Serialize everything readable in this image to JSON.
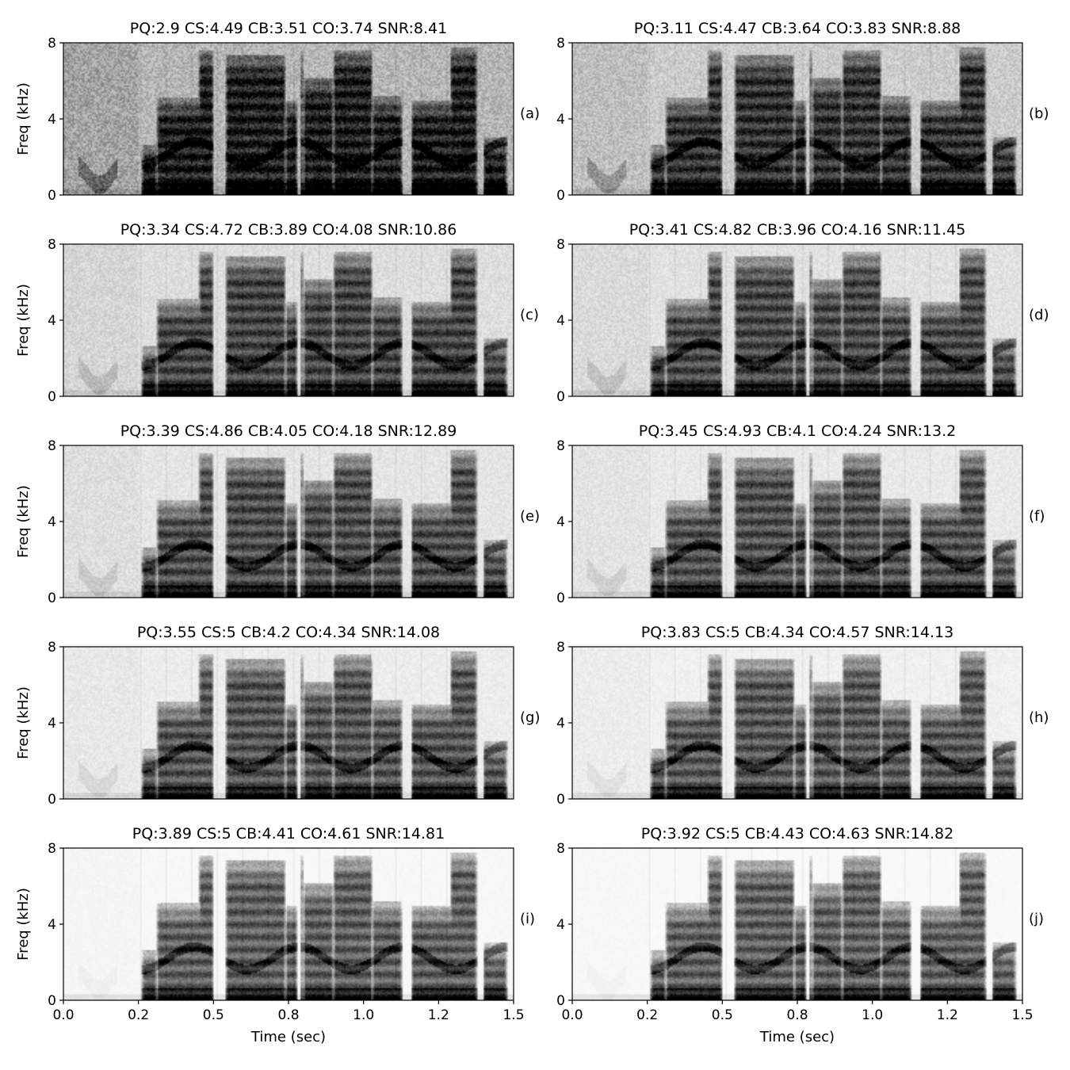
{
  "figure": {
    "xlabel": "Time (sec)",
    "ylabel": "Freq (kHz)"
  },
  "chart_data": [
    {
      "type": "heatmap",
      "panel": "(a)",
      "title": "PQ:2.9  CS:4.49  CB:3.51  CO:3.74  SNR:8.41",
      "xlabel": "",
      "ylabel": "Freq (kHz)",
      "xlim": [
        0,
        1.5
      ],
      "ylim": [
        0,
        8
      ],
      "xticks": [],
      "yticks": [
        "0",
        "4",
        "8"
      ],
      "noise_level": 1.0,
      "colormap": "grayscale (white=low, black=high)"
    },
    {
      "type": "heatmap",
      "panel": "(b)",
      "title": "PQ:3.11  CS:4.47  CB:3.64  CO:3.83  SNR:8.88",
      "xlabel": "",
      "ylabel": "",
      "xlim": [
        0,
        1.5
      ],
      "ylim": [
        0,
        8
      ],
      "xticks": [],
      "yticks": [
        "0",
        "4",
        "8"
      ],
      "noise_level": 0.7,
      "colormap": "grayscale (white=low, black=high)"
    },
    {
      "type": "heatmap",
      "panel": "(c)",
      "title": "PQ:3.34  CS:4.72  CB:3.89  CO:4.08  SNR:10.86",
      "xlabel": "",
      "ylabel": "Freq (kHz)",
      "xlim": [
        0,
        1.5
      ],
      "ylim": [
        0,
        8
      ],
      "xticks": [],
      "yticks": [
        "0",
        "4",
        "8"
      ],
      "noise_level": 0.45,
      "colormap": "grayscale (white=low, black=high)"
    },
    {
      "type": "heatmap",
      "panel": "(d)",
      "title": "PQ:3.41  CS:4.82  CB:3.96  CO:4.16  SNR:11.45",
      "xlabel": "",
      "ylabel": "",
      "xlim": [
        0,
        1.5
      ],
      "ylim": [
        0,
        8
      ],
      "xticks": [],
      "yticks": [
        "0",
        "4",
        "8"
      ],
      "noise_level": 0.4,
      "colormap": "grayscale (white=low, black=high)"
    },
    {
      "type": "heatmap",
      "panel": "(e)",
      "title": "PQ:3.39  CS:4.86  CB:4.05  CO:4.18  SNR:12.89",
      "xlabel": "",
      "ylabel": "Freq (kHz)",
      "xlim": [
        0,
        1.5
      ],
      "ylim": [
        0,
        8
      ],
      "xticks": [],
      "yticks": [
        "0",
        "4",
        "8"
      ],
      "noise_level": 0.35,
      "colormap": "grayscale (white=low, black=high)"
    },
    {
      "type": "heatmap",
      "panel": "(f)",
      "title": "PQ:3.45  CS:4.93  CB:4.1  CO:4.24  SNR:13.2",
      "xlabel": "",
      "ylabel": "",
      "xlim": [
        0,
        1.5
      ],
      "ylim": [
        0,
        8
      ],
      "xticks": [],
      "yticks": [
        "0",
        "4",
        "8"
      ],
      "noise_level": 0.3,
      "colormap": "grayscale (white=low, black=high)"
    },
    {
      "type": "heatmap",
      "panel": "(g)",
      "title": "PQ:3.55  CS:5  CB:4.2  CO:4.34  SNR:14.08",
      "xlabel": "",
      "ylabel": "Freq (kHz)",
      "xlim": [
        0,
        1.5
      ],
      "ylim": [
        0,
        8
      ],
      "xticks": [],
      "yticks": [
        "0",
        "4",
        "8"
      ],
      "noise_level": 0.25,
      "colormap": "grayscale (white=low, black=high)"
    },
    {
      "type": "heatmap",
      "panel": "(h)",
      "title": "PQ:3.83  CS:5  CB:4.34  CO:4.57  SNR:14.13",
      "xlabel": "",
      "ylabel": "",
      "xlim": [
        0,
        1.5
      ],
      "ylim": [
        0,
        8
      ],
      "xticks": [],
      "yticks": [
        "0",
        "4",
        "8"
      ],
      "noise_level": 0.2,
      "colormap": "grayscale (white=low, black=high)"
    },
    {
      "type": "heatmap",
      "panel": "(i)",
      "title": "PQ:3.89  CS:5  CB:4.41  CO:4.61  SNR:14.81",
      "xlabel": "Time (sec)",
      "ylabel": "Freq (kHz)",
      "xlim": [
        0,
        1.5
      ],
      "ylim": [
        0,
        8
      ],
      "xticks": [
        "0.0",
        "0.2",
        "0.5",
        "0.8",
        "1.0",
        "1.2",
        "1.5"
      ],
      "yticks": [
        "0",
        "4",
        "8"
      ],
      "noise_level": 0.1,
      "colormap": "grayscale (white=low, black=high)"
    },
    {
      "type": "heatmap",
      "panel": "(j)",
      "title": "PQ:3.92  CS:5  CB:4.43  CO:4.63  SNR:14.82",
      "xlabel": "Time (sec)",
      "ylabel": "",
      "xlim": [
        0,
        1.5
      ],
      "ylim": [
        0,
        8
      ],
      "xticks": [
        "0.0",
        "0.2",
        "0.5",
        "0.8",
        "1.0",
        "1.2",
        "1.5"
      ],
      "yticks": [
        "0",
        "4",
        "8"
      ],
      "noise_level": 0.08,
      "colormap": "grayscale (white=low, black=high)"
    }
  ]
}
